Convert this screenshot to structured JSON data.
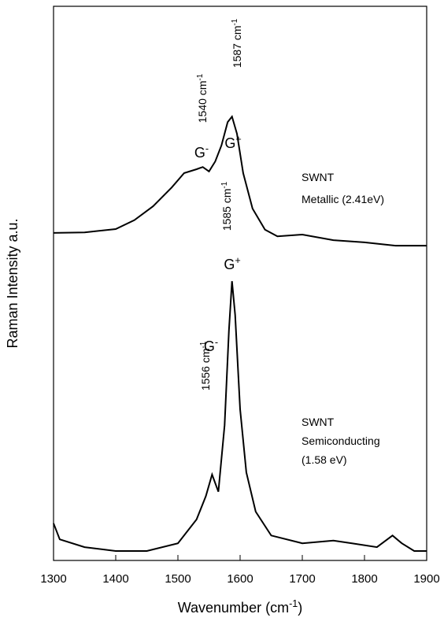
{
  "chart_data": {
    "type": "line",
    "x_label": {
      "text": "Wavenumber (cm",
      "sup": "-1",
      "after": ")"
    },
    "y_label": "Raman Intensity a.u.",
    "xlim": [
      1300,
      1900
    ],
    "xticks": [
      1300,
      1400,
      1500,
      1600,
      1700,
      1800,
      1900
    ],
    "ylim": [
      0,
      100
    ],
    "series": [
      {
        "color": "#000000",
        "x": [
          1300,
          1350,
          1400,
          1430,
          1460,
          1490,
          1510,
          1530,
          1540,
          1550,
          1560,
          1570,
          1580,
          1587,
          1595,
          1605,
          1620,
          1640,
          1660,
          1700,
          1750,
          1800,
          1850,
          1900
        ],
        "values": [
          59.1,
          59.2,
          59.8,
          61.4,
          63.9,
          67.3,
          69.9,
          70.6,
          71.0,
          70.2,
          72.0,
          74.9,
          79.1,
          80.1,
          77.0,
          69.9,
          63.5,
          59.7,
          58.5,
          58.8,
          57.8,
          57.4,
          56.8,
          56.8
        ]
      },
      {
        "color": "#000000",
        "x": [
          1300,
          1310,
          1350,
          1400,
          1450,
          1500,
          1530,
          1545,
          1555,
          1565,
          1575,
          1582,
          1587,
          1592,
          1600,
          1610,
          1625,
          1650,
          1700,
          1750,
          1780,
          1820,
          1845,
          1860,
          1880,
          1900
        ],
        "values": [
          6.7,
          3.8,
          2.4,
          1.7,
          1.7,
          3.1,
          7.4,
          11.6,
          15.5,
          12.4,
          24.4,
          41.5,
          50.4,
          44.3,
          27.3,
          15.9,
          8.8,
          4.5,
          3.1,
          3.6,
          3.1,
          2.4,
          4.5,
          3.1,
          1.7,
          1.7
        ]
      }
    ],
    "annotations": [
      {
        "text": "1587 cm",
        "sup": "-1"
      },
      {
        "text": "1540 cm",
        "sup": "-1"
      },
      {
        "text": "G",
        "sup": "+"
      },
      {
        "text": "G",
        "sup": "-"
      },
      {
        "text": "1585 cm",
        "sup": "-1"
      },
      {
        "text": "G",
        "sup": "+"
      },
      {
        "text": "1556 cm",
        "sup": "-1"
      },
      {
        "text": "G",
        "sup": "-"
      },
      {
        "text": "SWNT"
      },
      {
        "text": "Metallic (2.41eV)"
      },
      {
        "text": "SWNT"
      },
      {
        "text": "Semiconducting"
      },
      {
        "text": " (1.58 eV)"
      }
    ]
  }
}
